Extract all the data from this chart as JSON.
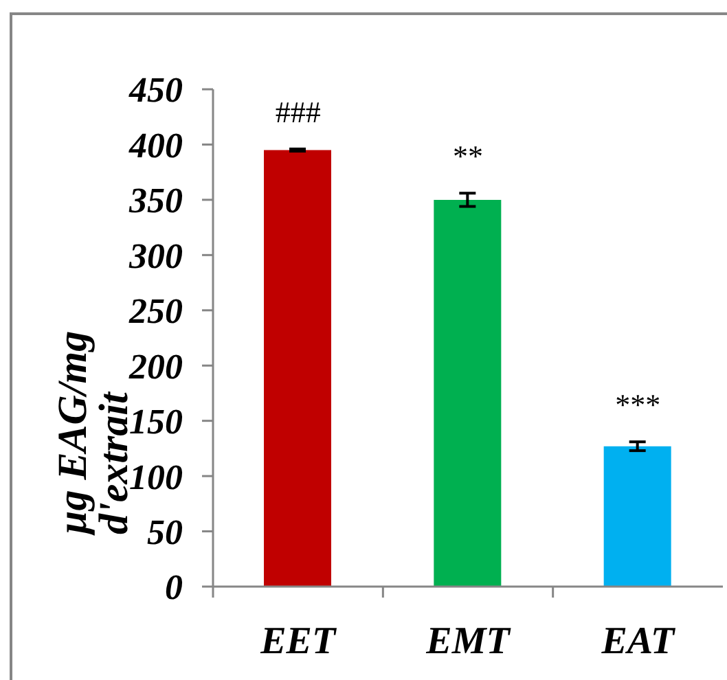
{
  "chart_data": {
    "type": "bar",
    "ylabel": "µg EAG/mg d'extrait",
    "categories": [
      "EET",
      "EMT",
      "EAT"
    ],
    "values": [
      395,
      350,
      127
    ],
    "errors": [
      1,
      6,
      4
    ],
    "colors": [
      "#c00000",
      "#00b050",
      "#00b0f0"
    ],
    "ylim": [
      0,
      450
    ],
    "yticks": [
      0,
      50,
      100,
      150,
      200,
      250,
      300,
      350,
      400,
      450
    ],
    "grid": false,
    "legend": false,
    "annotations": [
      "###",
      "**",
      "***"
    ]
  }
}
